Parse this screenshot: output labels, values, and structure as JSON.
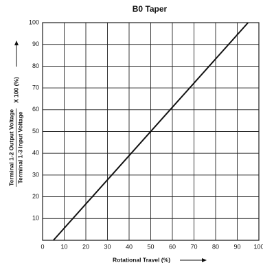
{
  "chart_data": {
    "type": "line",
    "title": "B0 Taper",
    "x_label": "Rotational Travel (%)",
    "y_label_numerator": "Terminal 1-2 Output Voltage",
    "y_label_denominator": "Terminal 1-3 Input Voltage",
    "y_label_factor": "X 100 (%)",
    "x": [
      5,
      95
    ],
    "values": [
      0,
      100
    ],
    "color": "#111111",
    "xlim": [
      0,
      100
    ],
    "xticks": [
      0,
      10,
      20,
      30,
      40,
      50,
      60,
      70,
      80,
      90,
      100
    ],
    "ylim": [
      0,
      100
    ],
    "yticks": [
      10,
      20,
      30,
      40,
      50,
      60,
      70,
      80,
      90,
      100
    ],
    "grid": true
  }
}
